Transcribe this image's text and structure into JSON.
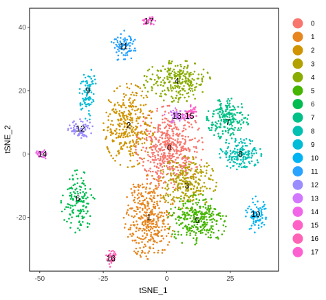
{
  "chart_data": {
    "type": "scatter",
    "title": "",
    "xlabel": "tSNE_1",
    "ylabel": "tSNE_2",
    "xlim": [
      -54,
      44
    ],
    "ylim": [
      -37,
      46
    ],
    "xticks": [
      -50,
      -25,
      0,
      25
    ],
    "yticks": [
      -20,
      0,
      20,
      40
    ],
    "grid": false,
    "legend": "right",
    "series": [
      {
        "name": "0",
        "color": "#F8766D",
        "center": [
          1,
          2
        ],
        "spread": [
          8,
          8
        ],
        "count": 520
      },
      {
        "name": "1",
        "color": "#E7851E",
        "center": [
          -7,
          -20
        ],
        "spread": [
          6,
          8
        ],
        "count": 380
      },
      {
        "name": "2",
        "color": "#D09400",
        "center": [
          -15,
          9
        ],
        "spread": [
          6,
          8
        ],
        "count": 330
      },
      {
        "name": "3",
        "color": "#B2A100",
        "center": [
          8,
          -9
        ],
        "spread": [
          7,
          5
        ],
        "count": 250
      },
      {
        "name": "4",
        "color": "#89AC00",
        "center": [
          4,
          23
        ],
        "spread": [
          8,
          4
        ],
        "count": 260
      },
      {
        "name": "5",
        "color": "#45B500",
        "center": [
          12,
          -21
        ],
        "spread": [
          7,
          5
        ],
        "count": 280
      },
      {
        "name": "6",
        "color": "#00BC51",
        "center": [
          -35,
          -15
        ],
        "spread": [
          4,
          6
        ],
        "count": 140
      },
      {
        "name": "7",
        "color": "#00C087",
        "center": [
          24,
          11
        ],
        "spread": [
          5,
          4
        ],
        "count": 200
      },
      {
        "name": "8",
        "color": "#00C0B2",
        "center": [
          29,
          0
        ],
        "spread": [
          5,
          3
        ],
        "count": 170
      },
      {
        "name": "9",
        "color": "#00BCD6",
        "center": [
          -31,
          19
        ],
        "spread": [
          2,
          5
        ],
        "count": 90
      },
      {
        "name": "10",
        "color": "#00B3F2",
        "center": [
          35,
          -19
        ],
        "spread": [
          2.5,
          3.5
        ],
        "count": 80
      },
      {
        "name": "11",
        "color": "#29A3FF",
        "center": [
          -17,
          34
        ],
        "spread": [
          3,
          3
        ],
        "count": 80
      },
      {
        "name": "12",
        "color": "#9C8DFF",
        "center": [
          -34,
          8
        ],
        "spread": [
          3,
          1.8
        ],
        "count": 70
      },
      {
        "name": "13",
        "color": "#D277FF",
        "center": [
          4,
          12
        ],
        "spread": [
          3,
          1.5
        ],
        "count": 50
      },
      {
        "name": "14",
        "color": "#F166E8",
        "center": [
          -49,
          0
        ],
        "spread": [
          1.5,
          1
        ],
        "count": 25
      },
      {
        "name": "15",
        "color": "#FF61C7",
        "center": [
          9,
          13
        ],
        "spread": [
          2,
          1.5
        ],
        "count": 40
      },
      {
        "name": "16",
        "color": "#FF63B6",
        "center": [
          -22,
          -33
        ],
        "spread": [
          1.3,
          1.6
        ],
        "count": 35
      },
      {
        "name": "17",
        "color": "#FD61D1",
        "center": [
          -7,
          42
        ],
        "spread": [
          1.5,
          1
        ],
        "count": 30
      }
    ],
    "cluster_labels": [
      {
        "text": "0",
        "x": 1,
        "y": 2
      },
      {
        "text": "1",
        "x": -7,
        "y": -20
      },
      {
        "text": "2",
        "x": -15,
        "y": 9
      },
      {
        "text": "3",
        "x": 8,
        "y": -10
      },
      {
        "text": "4",
        "x": 4,
        "y": 23
      },
      {
        "text": "5",
        "x": 12,
        "y": -21
      },
      {
        "text": "6",
        "x": -35,
        "y": -14
      },
      {
        "text": "7",
        "x": 24,
        "y": 10
      },
      {
        "text": "8",
        "x": 29,
        "y": 0
      },
      {
        "text": "9",
        "x": -31,
        "y": 20
      },
      {
        "text": "10",
        "x": 35,
        "y": -19
      },
      {
        "text": "11",
        "x": -17,
        "y": 34
      },
      {
        "text": "12",
        "x": -34,
        "y": 8
      },
      {
        "text": "13",
        "x": 4,
        "y": 12
      },
      {
        "text": "14",
        "x": -49,
        "y": 0
      },
      {
        "text": "15",
        "x": 9,
        "y": 12
      },
      {
        "text": "16",
        "x": -22,
        "y": -33
      },
      {
        "text": "17",
        "x": -7,
        "y": 42
      }
    ]
  }
}
